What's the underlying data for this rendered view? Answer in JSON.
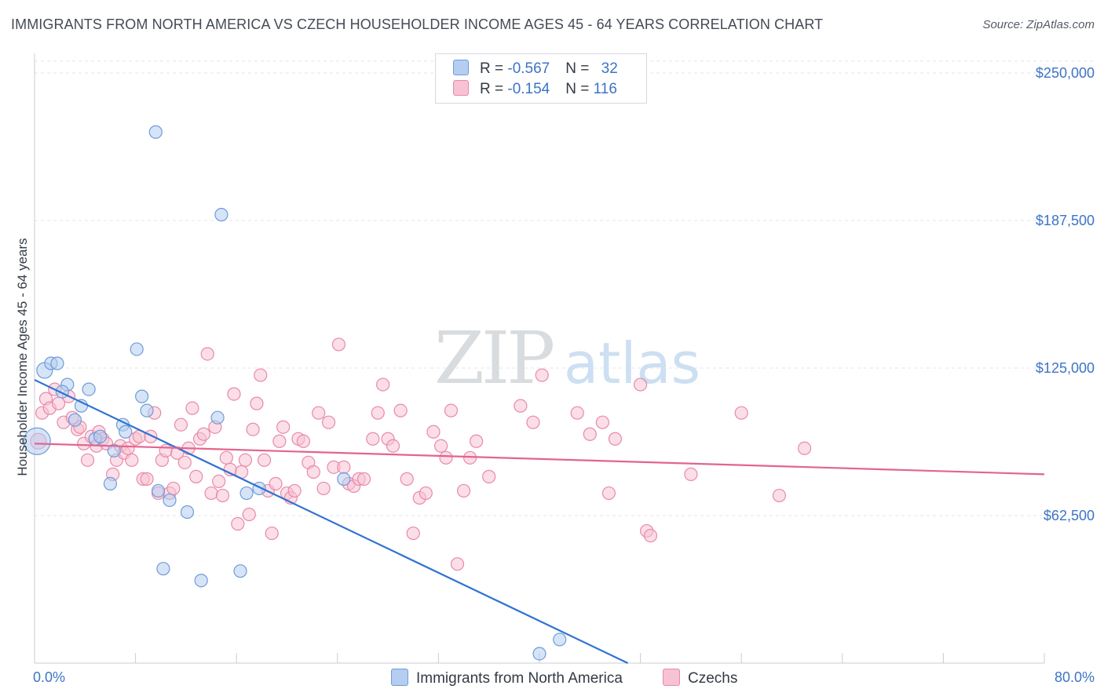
{
  "title": "IMMIGRANTS FROM NORTH AMERICA VS CZECH HOUSEHOLDER INCOME AGES 45 - 64 YEARS CORRELATION CHART",
  "source": "Source: ZipAtlas.com",
  "watermark": {
    "zip": "ZIP",
    "atlas": "atlas"
  },
  "legend": {
    "rows": [
      {
        "r_label": "R = ",
        "r_value": "-0.567",
        "n_label": "N = ",
        "n_value": "32"
      },
      {
        "r_label": "R = ",
        "r_value": "-0.154",
        "n_label": "N = ",
        "n_value": "116"
      }
    ]
  },
  "colors": {
    "blue_fill": "#b4cdf0",
    "blue_stroke": "#6f9bd8",
    "blue_line": "#2f72d2",
    "pink_fill": "#f7c2d3",
    "pink_stroke": "#e88aa8",
    "pink_line": "#e3648e",
    "grid": "#e3e6ea",
    "tick_text": "#3d74c6"
  },
  "chart_data": {
    "type": "scatter",
    "title": "IMMIGRANTS FROM NORTH AMERICA VS CZECH HOUSEHOLDER INCOME AGES 45 - 64 YEARS CORRELATION CHART",
    "xlabel": "",
    "ylabel": "Householder Income Ages 45 - 64 years",
    "xlim": [
      0,
      80
    ],
    "ylim": [
      0,
      255000
    ],
    "x_tick_labels": [
      "0.0%",
      "80.0%"
    ],
    "y_ticks": [
      62500,
      125000,
      187500,
      250000
    ],
    "y_tick_labels": [
      "$62,500",
      "$125,000",
      "$187,500",
      "$250,000"
    ],
    "grid": true,
    "legend_position": "bottom",
    "series": [
      {
        "name": "Immigrants from North America",
        "color": "#b4cdf0",
        "trend": {
          "x": [
            0,
            47
          ],
          "y": [
            120000,
            0
          ]
        },
        "points": [
          [
            0.2,
            94000,
            3
          ],
          [
            0.8,
            124000,
            2
          ],
          [
            1.3,
            127000,
            1
          ],
          [
            1.8,
            127000,
            1
          ],
          [
            2.6,
            118000,
            1
          ],
          [
            2.2,
            115000,
            1
          ],
          [
            4.3,
            116000,
            1
          ],
          [
            3.2,
            103000,
            1
          ],
          [
            3.7,
            109000,
            1
          ],
          [
            4.8,
            95000,
            1
          ],
          [
            5.2,
            96000,
            1
          ],
          [
            7.0,
            101000,
            1
          ],
          [
            7.2,
            98000,
            1
          ],
          [
            8.1,
            133000,
            1
          ],
          [
            8.5,
            113000,
            1
          ],
          [
            8.9,
            107000,
            1
          ],
          [
            9.6,
            225000,
            1
          ],
          [
            6.0,
            76000,
            1
          ],
          [
            6.3,
            90000,
            1
          ],
          [
            9.8,
            73000,
            1
          ],
          [
            10.7,
            69000,
            1
          ],
          [
            12.1,
            64000,
            1
          ],
          [
            14.5,
            104000,
            1
          ],
          [
            14.8,
            190000,
            1
          ],
          [
            10.2,
            40000,
            1
          ],
          [
            13.2,
            35000,
            1
          ],
          [
            16.3,
            39000,
            1
          ],
          [
            16.8,
            72000,
            1
          ],
          [
            17.8,
            74000,
            1
          ],
          [
            24.5,
            78000,
            1
          ],
          [
            40.0,
            4000,
            1
          ],
          [
            41.6,
            10000,
            1
          ]
        ]
      },
      {
        "name": "Czechs",
        "color": "#f7c2d3",
        "trend": {
          "x": [
            0,
            80
          ],
          "y": [
            93000,
            80000
          ]
        },
        "points": [
          [
            0.3,
            94000,
            2
          ],
          [
            0.6,
            106000,
            1
          ],
          [
            0.9,
            112000,
            1
          ],
          [
            1.2,
            108000,
            1
          ],
          [
            1.6,
            116000,
            1
          ],
          [
            1.9,
            110000,
            1
          ],
          [
            2.3,
            102000,
            1
          ],
          [
            2.7,
            113000,
            1
          ],
          [
            3.0,
            104000,
            1
          ],
          [
            3.4,
            99000,
            1
          ],
          [
            3.6,
            100000,
            1
          ],
          [
            3.9,
            93000,
            1
          ],
          [
            4.2,
            86000,
            1
          ],
          [
            4.5,
            96000,
            1
          ],
          [
            4.9,
            92000,
            1
          ],
          [
            5.1,
            98000,
            1
          ],
          [
            5.4,
            95000,
            1
          ],
          [
            5.7,
            93000,
            1
          ],
          [
            6.2,
            80000,
            1
          ],
          [
            6.5,
            86000,
            1
          ],
          [
            6.8,
            92000,
            1
          ],
          [
            7.1,
            89000,
            1
          ],
          [
            7.4,
            91000,
            1
          ],
          [
            7.7,
            86000,
            1
          ],
          [
            8.0,
            95000,
            1
          ],
          [
            8.3,
            96000,
            1
          ],
          [
            8.6,
            78000,
            1
          ],
          [
            8.9,
            78000,
            1
          ],
          [
            9.2,
            96000,
            1
          ],
          [
            9.5,
            106000,
            1
          ],
          [
            9.8,
            72000,
            1
          ],
          [
            10.1,
            86000,
            1
          ],
          [
            10.4,
            90000,
            1
          ],
          [
            10.7,
            72000,
            1
          ],
          [
            11.0,
            74000,
            1
          ],
          [
            11.3,
            89000,
            1
          ],
          [
            11.6,
            101000,
            1
          ],
          [
            11.9,
            85000,
            1
          ],
          [
            12.2,
            91000,
            1
          ],
          [
            12.5,
            108000,
            1
          ],
          [
            12.8,
            79000,
            1
          ],
          [
            13.1,
            95000,
            1
          ],
          [
            13.4,
            97000,
            1
          ],
          [
            13.7,
            131000,
            1
          ],
          [
            14.0,
            72000,
            1
          ],
          [
            14.3,
            100000,
            1
          ],
          [
            14.6,
            77000,
            1
          ],
          [
            14.9,
            71000,
            1
          ],
          [
            15.2,
            87000,
            1
          ],
          [
            15.5,
            82000,
            1
          ],
          [
            15.8,
            114000,
            1
          ],
          [
            16.1,
            59000,
            1
          ],
          [
            16.4,
            81000,
            1
          ],
          [
            16.7,
            86000,
            1
          ],
          [
            17.0,
            63000,
            1
          ],
          [
            17.3,
            99000,
            1
          ],
          [
            17.6,
            110000,
            1
          ],
          [
            17.9,
            122000,
            1
          ],
          [
            18.2,
            86000,
            1
          ],
          [
            18.5,
            73000,
            1
          ],
          [
            18.8,
            55000,
            1
          ],
          [
            19.1,
            76000,
            1
          ],
          [
            19.4,
            94000,
            1
          ],
          [
            19.7,
            100000,
            1
          ],
          [
            20.0,
            72000,
            1
          ],
          [
            20.3,
            70000,
            1
          ],
          [
            20.6,
            73000,
            1
          ],
          [
            20.9,
            95000,
            1
          ],
          [
            21.3,
            94000,
            1
          ],
          [
            21.7,
            85000,
            1
          ],
          [
            22.1,
            81000,
            1
          ],
          [
            22.5,
            106000,
            1
          ],
          [
            22.9,
            74000,
            1
          ],
          [
            23.3,
            102000,
            1
          ],
          [
            23.7,
            83000,
            1
          ],
          [
            24.1,
            135000,
            1
          ],
          [
            24.5,
            83000,
            1
          ],
          [
            24.9,
            76000,
            1
          ],
          [
            25.3,
            75000,
            1
          ],
          [
            25.7,
            78000,
            1
          ],
          [
            26.1,
            78000,
            1
          ],
          [
            26.8,
            95000,
            1
          ],
          [
            27.2,
            106000,
            1
          ],
          [
            27.6,
            118000,
            1
          ],
          [
            28.0,
            95000,
            1
          ],
          [
            28.4,
            92000,
            1
          ],
          [
            29.0,
            107000,
            1
          ],
          [
            29.5,
            78000,
            1
          ],
          [
            30.0,
            55000,
            1
          ],
          [
            30.5,
            70000,
            1
          ],
          [
            31.0,
            72000,
            1
          ],
          [
            31.6,
            98000,
            1
          ],
          [
            32.2,
            92000,
            1
          ],
          [
            32.6,
            87000,
            1
          ],
          [
            33.0,
            107000,
            1
          ],
          [
            33.5,
            42000,
            1
          ],
          [
            34.0,
            73000,
            1
          ],
          [
            34.5,
            87000,
            1
          ],
          [
            35.0,
            94000,
            1
          ],
          [
            36.0,
            79000,
            1
          ],
          [
            38.5,
            109000,
            1
          ],
          [
            39.5,
            102000,
            1
          ],
          [
            40.2,
            122000,
            1
          ],
          [
            43.0,
            106000,
            1
          ],
          [
            44.0,
            97000,
            1
          ],
          [
            45.0,
            102000,
            1
          ],
          [
            45.5,
            72000,
            1
          ],
          [
            46.0,
            95000,
            1
          ],
          [
            48.0,
            118000,
            1
          ],
          [
            48.5,
            56000,
            1
          ],
          [
            48.8,
            54000,
            1
          ],
          [
            52.0,
            80000,
            1
          ],
          [
            56.0,
            106000,
            1
          ],
          [
            59.0,
            71000,
            1
          ],
          [
            61.0,
            91000,
            1
          ]
        ]
      }
    ]
  }
}
